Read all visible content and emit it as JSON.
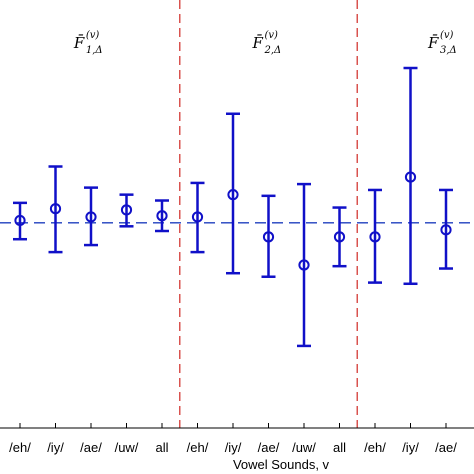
{
  "chart_data": {
    "type": "scatter",
    "subtype": "errorbar",
    "xlabel": "Vowel Sounds, v",
    "ylabel": "",
    "ylim": [
      -1.75,
      1.9
    ],
    "reference_line": {
      "y": 0,
      "style": "dashed",
      "color": "#1f3fbf"
    },
    "marker_color": "#1010c8",
    "divider_color": "#d9534f",
    "panels": [
      {
        "label_main": "F̄",
        "label_sub": "1,Δ",
        "label_sup": "(v)",
        "categories": [
          "/eh/",
          "/iy/",
          "/ae/",
          "/uw/",
          "all"
        ],
        "values": [
          0.02,
          0.12,
          0.05,
          0.11,
          0.06
        ],
        "lower": [
          -0.14,
          -0.25,
          -0.19,
          -0.03,
          -0.07
        ],
        "upper": [
          0.17,
          0.48,
          0.3,
          0.24,
          0.19
        ]
      },
      {
        "label_main": "F̄",
        "label_sub": "2,Δ",
        "label_sup": "(v)",
        "categories": [
          "/eh/",
          "/iy/",
          "/ae/",
          "/uw/",
          "all"
        ],
        "values": [
          0.05,
          0.24,
          -0.12,
          -0.36,
          -0.12
        ],
        "lower": [
          -0.25,
          -0.43,
          -0.46,
          -1.05,
          -0.37
        ],
        "upper": [
          0.34,
          0.93,
          0.23,
          0.33,
          0.13
        ]
      },
      {
        "label_main": "F̄",
        "label_sub": "3,Δ",
        "label_sup": "(v)",
        "categories": [
          "/eh/",
          "/iy/",
          "/ae/",
          "/"
        ],
        "values": [
          -0.12,
          0.39,
          -0.06,
          null
        ],
        "lower": [
          -0.51,
          -0.52,
          -0.39,
          null
        ],
        "upper": [
          0.28,
          1.32,
          0.28,
          null
        ]
      }
    ]
  }
}
